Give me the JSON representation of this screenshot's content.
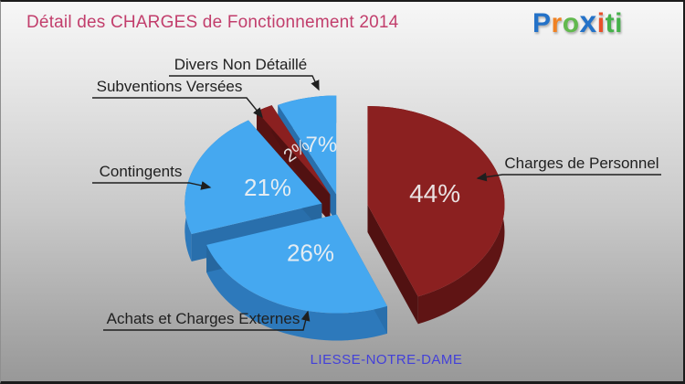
{
  "page": {
    "background_top": "#f7f7f7",
    "background_bottom": "#989898",
    "border_color": "#1c1c1c"
  },
  "header": {
    "title": "Détail des CHARGES de Fonctionnement 2014",
    "title_color": "#c23e6c"
  },
  "logo": {
    "text": "Proxiti",
    "letters": [
      {
        "ch": "P",
        "color": "#2472c8"
      },
      {
        "ch": "r",
        "color": "#f08223"
      },
      {
        "ch": "o",
        "color": "#62b94e"
      },
      {
        "ch": "x",
        "color": "#2472c8"
      },
      {
        "ch": "i",
        "color": "#e8502a"
      },
      {
        "ch": "t",
        "color": "#45b14a"
      },
      {
        "ch": "i",
        "color": "#45b14a"
      }
    ]
  },
  "chart_data": {
    "type": "pie",
    "style": "3d-exploded",
    "title": "Détail des CHARGES de Fonctionnement 2014",
    "footer": "LIESSE-NOTRE-DAME",
    "footer_color": "#4340d8",
    "start_angle_deg": 0,
    "direction": "clockwise",
    "legend_position": "callouts",
    "percent_label_color": "#f2f2f2",
    "slices": [
      {
        "label": "Charges de Personnel",
        "value": 44,
        "percent_label": "44%",
        "color": "#8b2020",
        "side_color": "#5f1414"
      },
      {
        "label": "Achats et Charges Externes",
        "value": 26,
        "percent_label": "26%",
        "color": "#45a8f0",
        "side_color": "#2d79bb"
      },
      {
        "label": "Contingents",
        "value": 21,
        "percent_label": "21%",
        "color": "#45a8f0",
        "side_color": "#2d79bb"
      },
      {
        "label": "Subventions Versées",
        "value": 2,
        "percent_label": "2%",
        "color": "#8b2020",
        "side_color": "#5f1414"
      },
      {
        "label": "Divers Non Détaillé",
        "value": 7,
        "percent_label": "7%",
        "color": "#45a8f0",
        "side_color": "#2d79bb"
      }
    ]
  }
}
